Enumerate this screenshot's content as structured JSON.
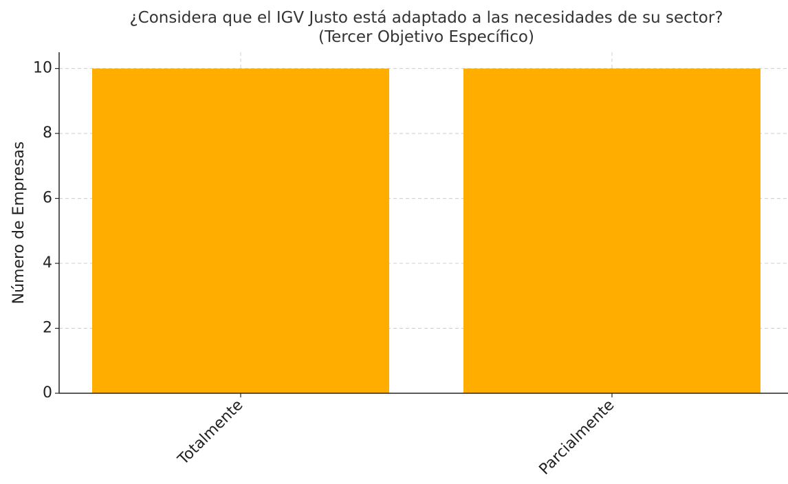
{
  "chart_data": {
    "type": "bar",
    "title": "¿Considera que el IGV Justo está adaptado a las necesidades de su sector?\n(Tercer Objetivo Específico)",
    "y_label": "Número de Empresas",
    "categories": [
      "Totalmente",
      "Parcialmente"
    ],
    "values": [
      10,
      10
    ],
    "color": "#ffae00",
    "ylim": [
      0,
      10.5
    ],
    "yticks": [
      0,
      2,
      4,
      6,
      8,
      10
    ],
    "grid": true
  }
}
